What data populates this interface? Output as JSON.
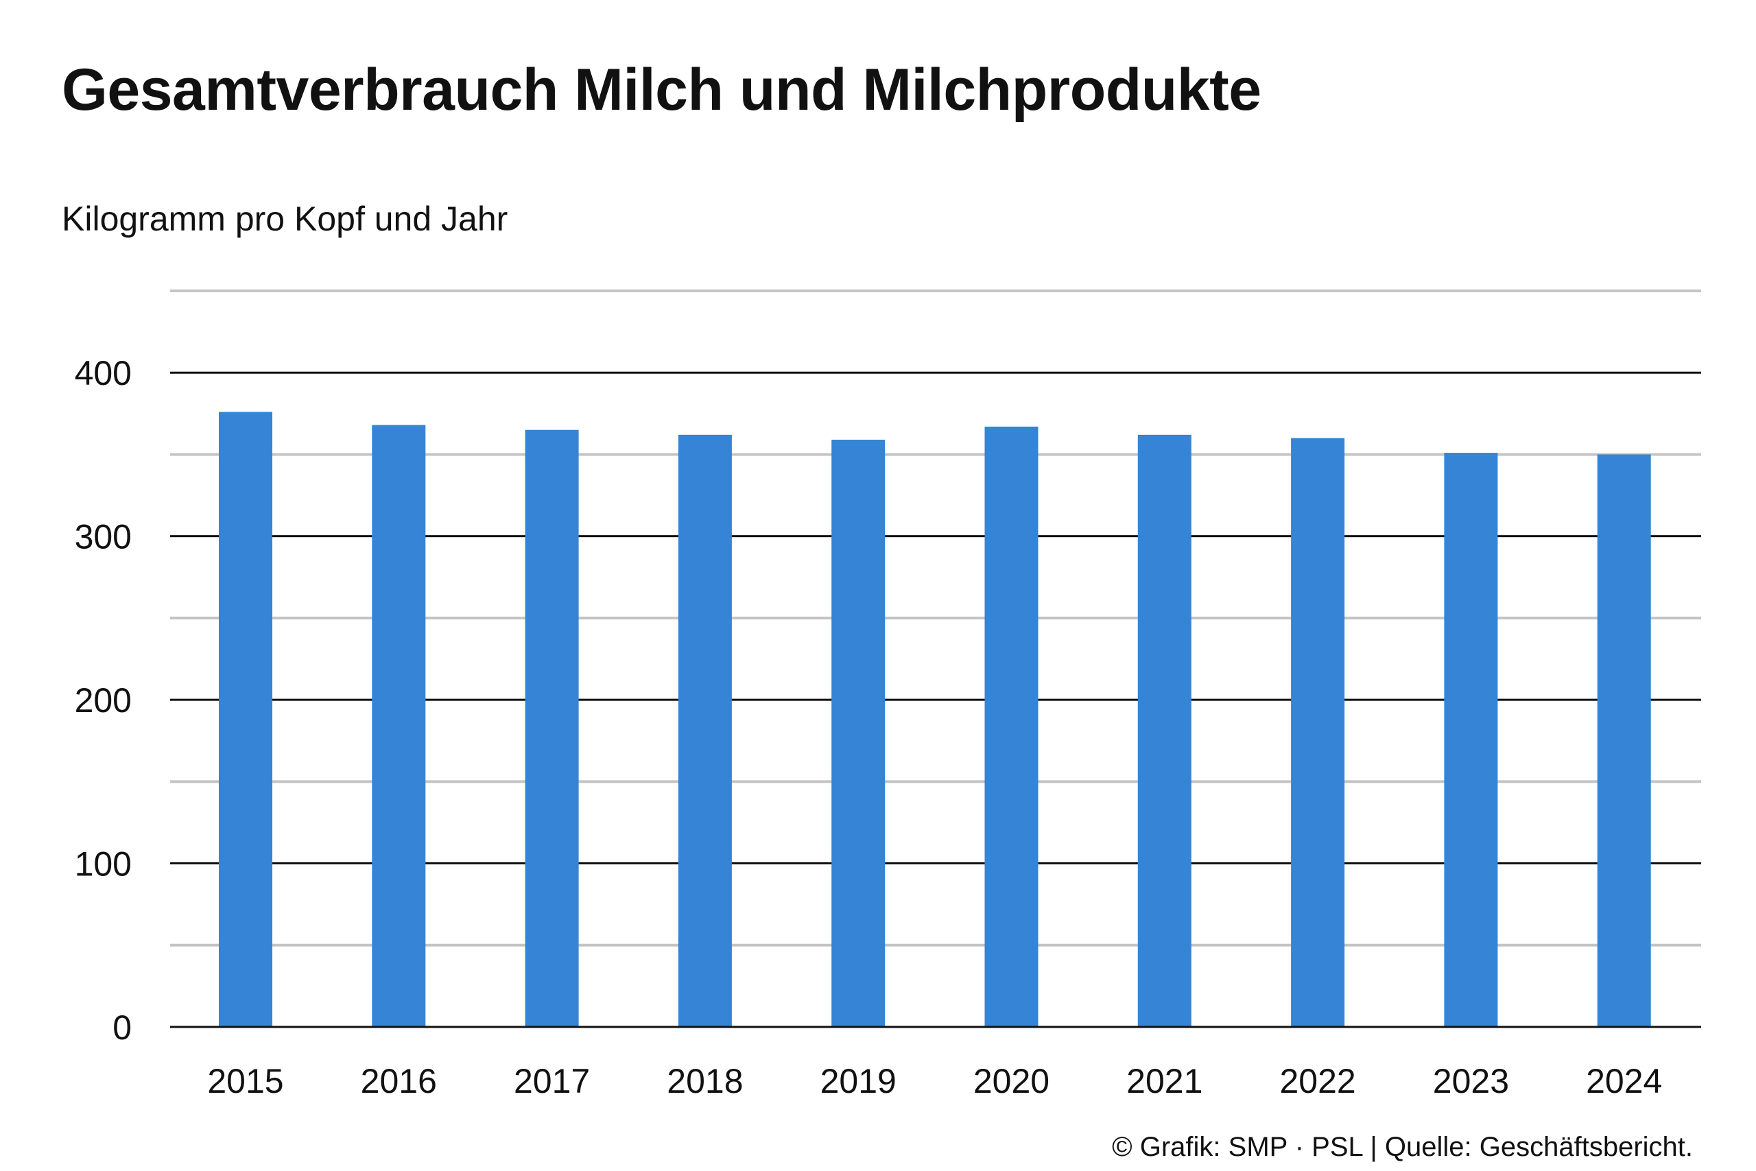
{
  "chart_data": {
    "type": "bar",
    "title": "Gesamtverbrauch Milch und Milchprodukte",
    "subtitle": "Kilogramm pro Kopf und Jahr",
    "xlabel": "",
    "ylabel": "",
    "categories": [
      "2015",
      "2016",
      "2017",
      "2018",
      "2019",
      "2020",
      "2021",
      "2022",
      "2023",
      "2024"
    ],
    "values": [
      376,
      368,
      365,
      362,
      359,
      367,
      362,
      360,
      351,
      350
    ],
    "ylim": [
      0,
      450
    ],
    "yticks": [
      0,
      100,
      200,
      300,
      400
    ],
    "y_tick_labels": [
      "0",
      "100",
      "200",
      "300",
      "400"
    ],
    "minor_gridlines": [
      50,
      150,
      250,
      350,
      450
    ],
    "grid": true,
    "legend": "none",
    "bar_color": "#3584d5",
    "major_grid_color": "#111111",
    "minor_grid_color": "#c4c4c4"
  },
  "footer": {
    "credit": "© Grafik: SMP · PSL | Quelle: Geschäftsbericht."
  }
}
